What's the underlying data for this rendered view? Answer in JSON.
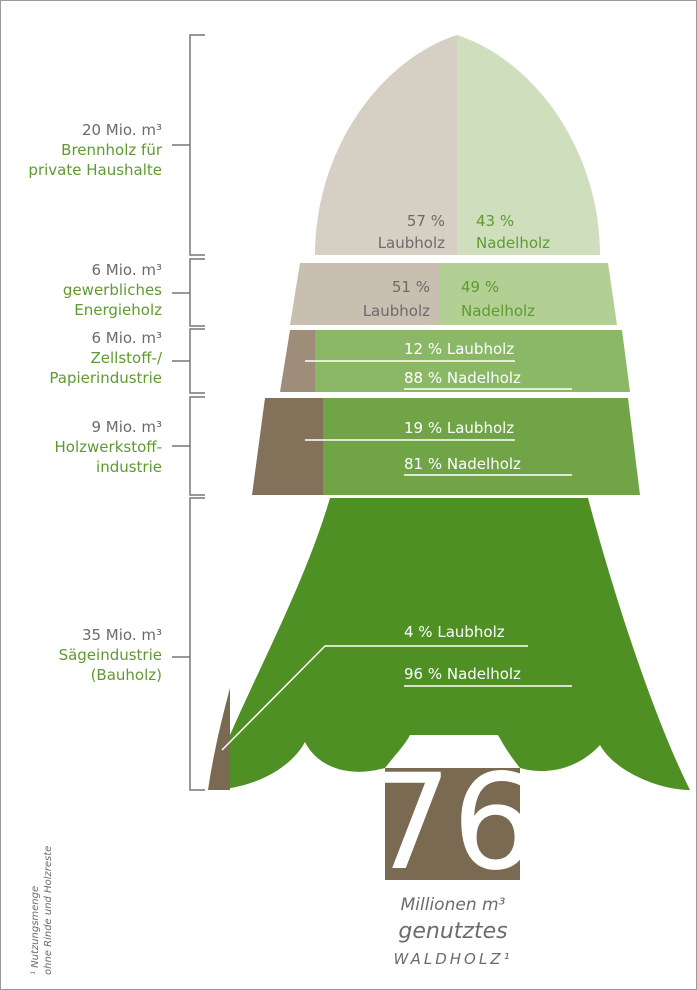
{
  "segments": [
    {
      "amount": "20 Mio. m³",
      "use": [
        "Brennholz für",
        "private Haushalte"
      ],
      "hardwood": {
        "share": "57 %",
        "name": "Laubholz"
      },
      "softwood": {
        "share": "43 %",
        "name": "Nadelholz"
      }
    },
    {
      "amount": "6 Mio. m³",
      "use": [
        "gewerbliches",
        "Energieholz"
      ],
      "hardwood": {
        "share": "51 %",
        "name": "Laubholz"
      },
      "softwood": {
        "share": "49 %",
        "name": "Nadelholz"
      }
    },
    {
      "amount": "6 Mio. m³",
      "use": [
        "Zellstoff-/",
        "Papierindustrie"
      ],
      "hardwood": "12 % Laubholz",
      "softwood": "88 % Nadelholz"
    },
    {
      "amount": "9 Mio. m³",
      "use": [
        "Holzwerkstoff-",
        "industrie"
      ],
      "hardwood": "19 % Laubholz",
      "softwood": "81 % Nadelholz"
    },
    {
      "amount": "35 Mio. m³",
      "use": [
        "Sägeindustrie",
        "(Bauholz)"
      ],
      "hardwood": "4 % Laubholz",
      "softwood": "96 % Nadelholz"
    }
  ],
  "total": {
    "number": "76",
    "unit": "Millionen m³",
    "line2": "genutztes",
    "line3": "WALDHOLZ¹"
  },
  "footnote": [
    "¹ Nutzungsmenge",
    "ohne Rinde und Holzreste"
  ]
}
